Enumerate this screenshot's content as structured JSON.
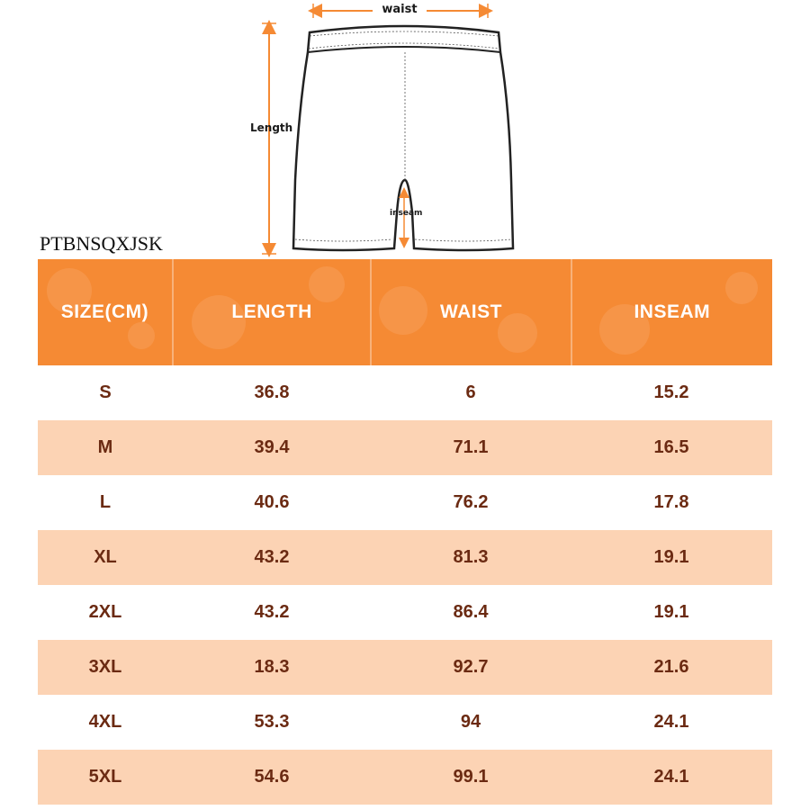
{
  "diagram": {
    "waist_label": "waist",
    "length_label": "Length",
    "inseam_label": "inseam",
    "accent_color": "#f58a34"
  },
  "brand": "PTBNSQXJSK",
  "table": {
    "header_color": "#f58a34",
    "stripe_color": "#fcd3b4",
    "text_color": "#6b2a12",
    "headers": [
      "SIZE(CM)",
      "LENGTH",
      "WAIST",
      "INSEAM"
    ],
    "rows": [
      [
        "S",
        "36.8",
        "6",
        "15.2"
      ],
      [
        "M",
        "39.4",
        "71.1",
        "16.5"
      ],
      [
        "L",
        "40.6",
        "76.2",
        "17.8"
      ],
      [
        "XL",
        "43.2",
        "81.3",
        "19.1"
      ],
      [
        "2XL",
        "43.2",
        "86.4",
        "19.1"
      ],
      [
        "3XL",
        "18.3",
        "92.7",
        "21.6"
      ],
      [
        "4XL",
        "53.3",
        "94",
        "24.1"
      ],
      [
        "5XL",
        "54.6",
        "99.1",
        "24.1"
      ]
    ]
  }
}
